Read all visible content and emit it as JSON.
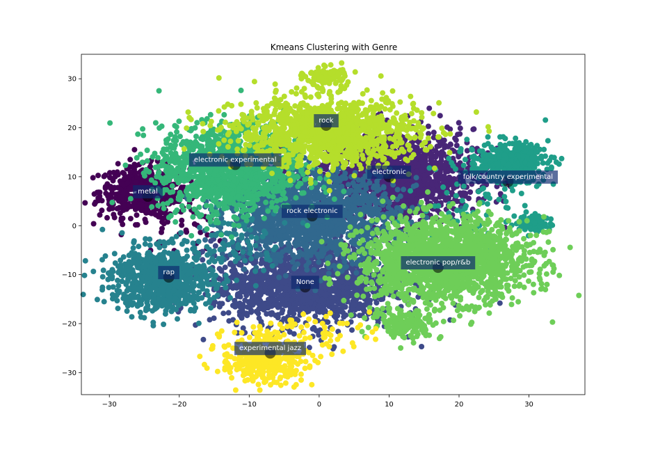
{
  "chart_data": {
    "type": "scatter",
    "title": "Kmeans Clustering with Genre",
    "xlabel": "",
    "ylabel": "",
    "xlim": [
      -34,
      38
    ],
    "ylim": [
      -34.5,
      35
    ],
    "xticks": [
      -30,
      -20,
      -10,
      0,
      10,
      20,
      30
    ],
    "yticks": [
      -30,
      -20,
      -10,
      0,
      10,
      20,
      30
    ],
    "grid": false,
    "clusters": [
      {
        "label": "metal",
        "color": "#440154",
        "center": [
          -24.5,
          6
        ],
        "blobs": [
          {
            "cx": -25,
            "cy": 7,
            "sx": 3.2,
            "sy": 2.6,
            "n": 520
          },
          {
            "cx": -20,
            "cy": 0,
            "sx": 3.5,
            "sy": 3,
            "n": 40
          }
        ]
      },
      {
        "label": "electronic",
        "color": "#482677",
        "center": [
          10,
          10
        ],
        "blobs": [
          {
            "cx": 11,
            "cy": 10,
            "sx": 5.5,
            "sy": 4.8,
            "n": 1400
          }
        ]
      },
      {
        "label": "None",
        "color": "#3e4a89",
        "center": [
          -2,
          -12.5
        ],
        "blobs": [
          {
            "cx": -2,
            "cy": -12,
            "sx": 6.5,
            "sy": 4.2,
            "n": 1500
          }
        ]
      },
      {
        "label": "rock electronic",
        "color": "#31688e",
        "center": [
          -1,
          2
        ],
        "blobs": [
          {
            "cx": -1,
            "cy": 2,
            "sx": 6,
            "sy": 4.5,
            "n": 1500
          }
        ]
      },
      {
        "label": "rap",
        "color": "#26828e",
        "center": [
          -21.5,
          -10.5
        ],
        "blobs": [
          {
            "cx": -22.5,
            "cy": -11,
            "sx": 3.6,
            "sy": 3.2,
            "n": 800
          },
          {
            "cx": -12,
            "cy": -3,
            "sx": 3.5,
            "sy": 4,
            "n": 90
          }
        ]
      },
      {
        "label": "folk/country experimental",
        "color": "#1f9e89",
        "center": [
          27,
          9
        ],
        "blobs": [
          {
            "cx": 27,
            "cy": 13,
            "sx": 2.8,
            "sy": 2.0,
            "n": 380
          },
          {
            "cx": 31,
            "cy": 0.5,
            "sx": 1.2,
            "sy": 1.0,
            "n": 70
          },
          {
            "cx": 22,
            "cy": 4,
            "sx": 4,
            "sy": 5,
            "n": 80
          }
        ]
      },
      {
        "label": "electronic experimental",
        "color": "#35b779",
        "center": [
          -12,
          12.5
        ],
        "blobs": [
          {
            "cx": -13,
            "cy": 11.5,
            "sx": 5,
            "sy": 4.5,
            "n": 1300
          }
        ]
      },
      {
        "label": "electronic pop/r&b",
        "color": "#6ece58",
        "center": [
          17,
          -8.5
        ],
        "blobs": [
          {
            "cx": 18,
            "cy": -7,
            "sx": 6,
            "sy": 4.2,
            "n": 1800
          },
          {
            "cx": 12.5,
            "cy": -20,
            "sx": 2.5,
            "sy": 1.5,
            "n": 150
          }
        ]
      },
      {
        "label": "rock",
        "color": "#b5de2b",
        "center": [
          1,
          20.5
        ],
        "blobs": [
          {
            "cx": 1,
            "cy": 19,
            "sx": 6.5,
            "sy": 3.5,
            "n": 1300
          },
          {
            "cx": 1,
            "cy": 30.5,
            "sx": 1.5,
            "sy": 1.0,
            "n": 110
          }
        ]
      },
      {
        "label": "experimental jazz",
        "color": "#fde725",
        "center": [
          -7,
          -26
        ],
        "blobs": [
          {
            "cx": -8,
            "cy": -27.5,
            "sx": 3,
            "sy": 2.2,
            "n": 380
          },
          {
            "cx": -3,
            "cy": -22,
            "sx": 5,
            "sy": 2,
            "n": 80
          }
        ]
      }
    ]
  }
}
